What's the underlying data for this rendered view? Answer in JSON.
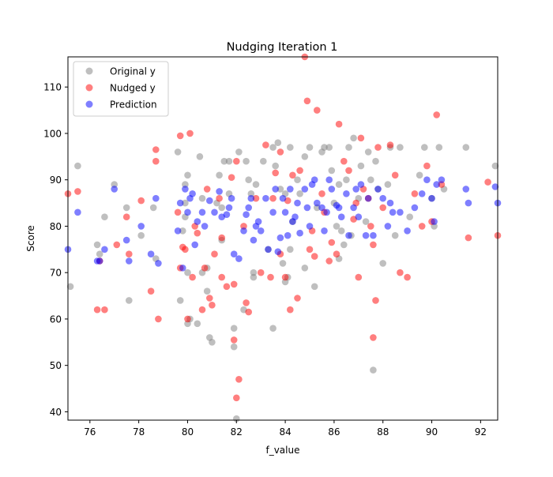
{
  "chart_data": {
    "type": "scatter",
    "title": "Nudging Iteration 1",
    "xlabel": "f_value",
    "ylabel": "Score",
    "xlim": [
      75.1,
      92.7
    ],
    "ylim": [
      38.2,
      116.5
    ],
    "xticks": [
      76,
      78,
      80,
      82,
      84,
      86,
      88,
      90,
      92
    ],
    "yticks": [
      40,
      50,
      60,
      70,
      80,
      90,
      100,
      110
    ],
    "grid": false,
    "legend_position": "top-left",
    "series": [
      {
        "name": "Original y",
        "color": "#808080",
        "alpha": 0.5,
        "points": [
          [
            75.2,
            67
          ],
          [
            75.5,
            93
          ],
          [
            76.3,
            76
          ],
          [
            76.4,
            74
          ],
          [
            76.6,
            82
          ],
          [
            77.0,
            89
          ],
          [
            77.5,
            84
          ],
          [
            77.6,
            64
          ],
          [
            78.1,
            78
          ],
          [
            78.6,
            84
          ],
          [
            78.7,
            73
          ],
          [
            79.6,
            96
          ],
          [
            79.7,
            64
          ],
          [
            79.8,
            79
          ],
          [
            79.9,
            82
          ],
          [
            79.9,
            85
          ],
          [
            79.9,
            89
          ],
          [
            80.0,
            59
          ],
          [
            80.0,
            70
          ],
          [
            80.1,
            60
          ],
          [
            80.0,
            91
          ],
          [
            80.4,
            59
          ],
          [
            80.5,
            95
          ],
          [
            80.6,
            86
          ],
          [
            80.8,
            71
          ],
          [
            80.9,
            56
          ],
          [
            80.8,
            66
          ],
          [
            81.0,
            55
          ],
          [
            81.2,
            85
          ],
          [
            81.3,
            91
          ],
          [
            81.5,
            94
          ],
          [
            81.4,
            84
          ],
          [
            81.7,
            87
          ],
          [
            81.7,
            94
          ],
          [
            81.9,
            58
          ],
          [
            82.1,
            96
          ],
          [
            82.3,
            62
          ],
          [
            82.4,
            94
          ],
          [
            82.5,
            90
          ],
          [
            82.6,
            87
          ],
          [
            82.7,
            70
          ],
          [
            82.8,
            89
          ],
          [
            83.1,
            94
          ],
          [
            83.3,
            75
          ],
          [
            83.5,
            58
          ],
          [
            83.5,
            97
          ],
          [
            83.6,
            93
          ],
          [
            83.7,
            98
          ],
          [
            83.8,
            88
          ],
          [
            83.9,
            72
          ],
          [
            84.0,
            87
          ],
          [
            84.1,
            69
          ],
          [
            84.2,
            97
          ],
          [
            84.2,
            75
          ],
          [
            84.3,
            81
          ],
          [
            84.5,
            90
          ],
          [
            84.6,
            87
          ],
          [
            84.8,
            71
          ],
          [
            84.8,
            95
          ],
          [
            85.0,
            97
          ],
          [
            85.2,
            67
          ],
          [
            85.3,
            84
          ],
          [
            85.5,
            96
          ],
          [
            85.6,
            97
          ],
          [
            85.8,
            97
          ],
          [
            85.9,
            92
          ],
          [
            86.0,
            85
          ],
          [
            86.1,
            80
          ],
          [
            86.2,
            89
          ],
          [
            86.3,
            79
          ],
          [
            86.4,
            76
          ],
          [
            86.5,
            90
          ],
          [
            86.6,
            97
          ],
          [
            86.7,
            78
          ],
          [
            86.8,
            99
          ],
          [
            87.0,
            86
          ],
          [
            87.1,
            93
          ],
          [
            87.3,
            81
          ],
          [
            87.4,
            96
          ],
          [
            87.5,
            90
          ],
          [
            87.6,
            49
          ],
          [
            87.7,
            94
          ],
          [
            87.8,
            88
          ],
          [
            88.0,
            72
          ],
          [
            88.2,
            89
          ],
          [
            88.3,
            97
          ],
          [
            88.5,
            78
          ],
          [
            88.7,
            97
          ],
          [
            89.1,
            82
          ],
          [
            89.5,
            91
          ],
          [
            89.7,
            97
          ],
          [
            90.0,
            86
          ],
          [
            90.1,
            80
          ],
          [
            90.3,
            97
          ],
          [
            90.5,
            88
          ],
          [
            91.4,
            97
          ],
          [
            92.6,
            93
          ],
          [
            82.0,
            38.5
          ],
          [
            81.9,
            54
          ],
          [
            80.6,
            70
          ],
          [
            81.4,
            77
          ],
          [
            82.7,
            69
          ],
          [
            84.0,
            68
          ],
          [
            86.2,
            73
          ]
        ]
      },
      {
        "name": "Nudged y",
        "color": "#ff0000",
        "alpha": 0.5,
        "points": [
          [
            75.1,
            87
          ],
          [
            75.5,
            87.5
          ],
          [
            76.3,
            62
          ],
          [
            76.6,
            62
          ],
          [
            76.4,
            72.5
          ],
          [
            77.1,
            76
          ],
          [
            77.5,
            82
          ],
          [
            77.6,
            74
          ],
          [
            78.1,
            85.5
          ],
          [
            78.5,
            66
          ],
          [
            78.7,
            96.5
          ],
          [
            78.7,
            94
          ],
          [
            78.8,
            60
          ],
          [
            79.6,
            83
          ],
          [
            79.7,
            99.5
          ],
          [
            79.8,
            75.5
          ],
          [
            79.9,
            75
          ],
          [
            80.0,
            60
          ],
          [
            80.1,
            100
          ],
          [
            80.2,
            69
          ],
          [
            80.3,
            80
          ],
          [
            80.4,
            78.5
          ],
          [
            80.6,
            62
          ],
          [
            80.7,
            71
          ],
          [
            80.9,
            64.5
          ],
          [
            81.0,
            63
          ],
          [
            81.1,
            74
          ],
          [
            81.3,
            86
          ],
          [
            81.4,
            69
          ],
          [
            81.6,
            67
          ],
          [
            81.8,
            90.5
          ],
          [
            81.9,
            55.5
          ],
          [
            81.9,
            67.5
          ],
          [
            82.1,
            47
          ],
          [
            82.0,
            43
          ],
          [
            82.0,
            94
          ],
          [
            82.3,
            80
          ],
          [
            82.4,
            63.5
          ],
          [
            82.5,
            61.5
          ],
          [
            82.8,
            86
          ],
          [
            83.0,
            70
          ],
          [
            83.2,
            97.5
          ],
          [
            83.4,
            69
          ],
          [
            83.5,
            86
          ],
          [
            83.6,
            91.5
          ],
          [
            83.8,
            96
          ],
          [
            84.0,
            69
          ],
          [
            84.1,
            85.5
          ],
          [
            84.2,
            62
          ],
          [
            84.3,
            91
          ],
          [
            84.5,
            64.5
          ],
          [
            84.6,
            92
          ],
          [
            84.8,
            116.5
          ],
          [
            84.9,
            107
          ],
          [
            85.1,
            79
          ],
          [
            85.2,
            73.5
          ],
          [
            85.3,
            105
          ],
          [
            85.5,
            87
          ],
          [
            85.6,
            83
          ],
          [
            85.8,
            72.5
          ],
          [
            85.9,
            76.5
          ],
          [
            86.1,
            74
          ],
          [
            86.2,
            102
          ],
          [
            86.4,
            94
          ],
          [
            86.6,
            92
          ],
          [
            86.8,
            81.5
          ],
          [
            86.9,
            85
          ],
          [
            87.0,
            69
          ],
          [
            87.1,
            99
          ],
          [
            87.2,
            88
          ],
          [
            87.4,
            86
          ],
          [
            87.5,
            80
          ],
          [
            87.6,
            76
          ],
          [
            87.7,
            64
          ],
          [
            87.6,
            56
          ],
          [
            87.8,
            97
          ],
          [
            88.0,
            84
          ],
          [
            88.3,
            97.5
          ],
          [
            88.5,
            91
          ],
          [
            88.7,
            70
          ],
          [
            89.0,
            69
          ],
          [
            89.3,
            87
          ],
          [
            89.6,
            80
          ],
          [
            89.8,
            93
          ],
          [
            90.0,
            81
          ],
          [
            90.2,
            104
          ],
          [
            90.4,
            89
          ],
          [
            91.5,
            77.5
          ],
          [
            92.3,
            89.5
          ],
          [
            92.7,
            78
          ],
          [
            83.8,
            74
          ],
          [
            85.0,
            75
          ],
          [
            81.4,
            77.5
          ],
          [
            79.7,
            71
          ],
          [
            80.8,
            88
          ]
        ]
      },
      {
        "name": "Prediction",
        "color": "#0000ff",
        "alpha": 0.5,
        "points": [
          [
            75.1,
            75
          ],
          [
            75.5,
            83
          ],
          [
            76.3,
            72.5
          ],
          [
            76.4,
            72.5
          ],
          [
            76.6,
            75
          ],
          [
            77.0,
            88
          ],
          [
            77.5,
            77
          ],
          [
            77.6,
            72.5
          ],
          [
            78.1,
            80
          ],
          [
            78.5,
            74
          ],
          [
            78.7,
            86
          ],
          [
            78.8,
            72
          ],
          [
            79.6,
            79
          ],
          [
            79.7,
            85
          ],
          [
            79.8,
            71
          ],
          [
            79.9,
            88
          ],
          [
            80.0,
            83
          ],
          [
            80.1,
            86
          ],
          [
            80.2,
            87
          ],
          [
            80.3,
            76
          ],
          [
            80.4,
            81
          ],
          [
            80.6,
            83
          ],
          [
            80.7,
            80
          ],
          [
            80.9,
            85.5
          ],
          [
            81.1,
            83
          ],
          [
            81.3,
            87.5
          ],
          [
            81.4,
            82
          ],
          [
            81.6,
            82.5
          ],
          [
            81.8,
            86
          ],
          [
            81.9,
            74
          ],
          [
            82.1,
            73
          ],
          [
            82.3,
            79
          ],
          [
            82.4,
            82.5
          ],
          [
            82.5,
            84
          ],
          [
            82.6,
            86
          ],
          [
            82.7,
            77
          ],
          [
            82.8,
            80
          ],
          [
            83.0,
            79
          ],
          [
            83.2,
            86
          ],
          [
            83.3,
            75
          ],
          [
            83.5,
            83
          ],
          [
            83.6,
            88
          ],
          [
            83.7,
            74.5
          ],
          [
            83.8,
            77.5
          ],
          [
            83.9,
            86
          ],
          [
            84.0,
            83
          ],
          [
            84.1,
            78
          ],
          [
            84.2,
            88
          ],
          [
            84.3,
            81
          ],
          [
            84.5,
            85
          ],
          [
            84.6,
            78.5
          ],
          [
            84.8,
            88
          ],
          [
            84.9,
            84
          ],
          [
            85.0,
            80
          ],
          [
            85.1,
            89
          ],
          [
            85.2,
            90
          ],
          [
            85.3,
            85
          ],
          [
            85.5,
            84
          ],
          [
            85.6,
            79
          ],
          [
            85.8,
            90
          ],
          [
            85.9,
            88
          ],
          [
            86.1,
            84.5
          ],
          [
            86.2,
            84
          ],
          [
            86.3,
            82
          ],
          [
            86.5,
            87
          ],
          [
            86.6,
            78
          ],
          [
            86.8,
            84
          ],
          [
            86.9,
            88
          ],
          [
            87.0,
            82
          ],
          [
            87.1,
            89
          ],
          [
            87.3,
            78
          ],
          [
            87.4,
            86
          ],
          [
            87.6,
            78
          ],
          [
            87.8,
            88
          ],
          [
            88.0,
            86
          ],
          [
            88.2,
            80
          ],
          [
            88.3,
            85
          ],
          [
            88.4,
            83
          ],
          [
            88.7,
            83
          ],
          [
            89.0,
            79
          ],
          [
            89.3,
            84
          ],
          [
            89.6,
            87
          ],
          [
            89.8,
            90
          ],
          [
            90.0,
            86
          ],
          [
            90.1,
            81
          ],
          [
            90.2,
            89
          ],
          [
            90.4,
            90
          ],
          [
            91.4,
            88
          ],
          [
            91.5,
            85
          ],
          [
            92.6,
            88.5
          ],
          [
            92.7,
            85
          ],
          [
            81.7,
            84
          ],
          [
            82.9,
            81
          ],
          [
            84.4,
            82
          ],
          [
            85.7,
            83
          ]
        ]
      }
    ]
  }
}
